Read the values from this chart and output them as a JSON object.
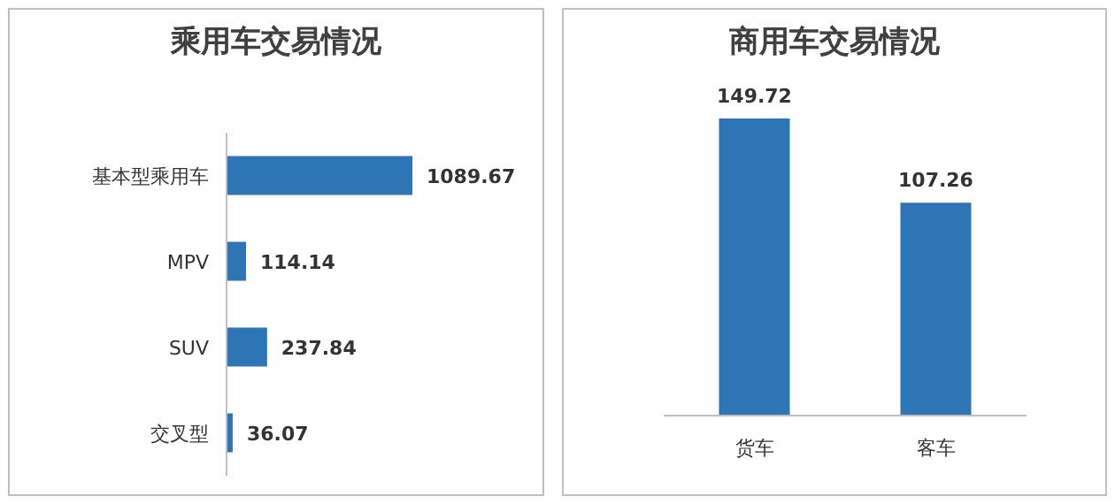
{
  "chart_data": [
    {
      "type": "bar",
      "title": "乘用车交易情况",
      "orientation": "horizontal",
      "categories": [
        "基本型乘用车",
        "MPV",
        "SUV",
        "交叉型"
      ],
      "values": [
        1089.67,
        114.14,
        237.84,
        36.07
      ],
      "color": "#2e75b6",
      "data_labels": true
    },
    {
      "type": "bar",
      "title": "商用车交易情况",
      "categories": [
        "货车",
        "客车"
      ],
      "values": [
        149.72,
        107.26
      ],
      "color": "#2e75b6",
      "data_labels": true
    }
  ]
}
